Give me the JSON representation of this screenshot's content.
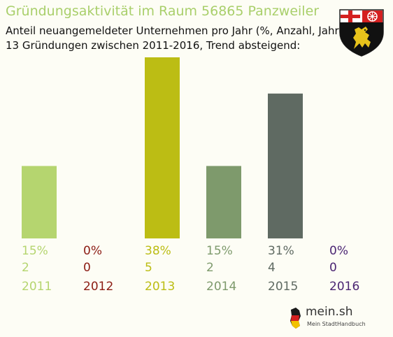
{
  "header": {
    "title": "Gründungsaktivität im Raum 56865 Panzweiler",
    "subtitle_line1": "Anteil neuangemeldeter Unternehmen pro Jahr (%, Anzahl, Jahr)",
    "subtitle_line2": "13 Gründungen zwischen 2011-2016, Trend absteigend:"
  },
  "crest": {
    "icon": "rhineland-palatinate-coat-of-arms-icon"
  },
  "logo": {
    "name": "mein.sh",
    "tagline": "Mein StadtHandbuch"
  },
  "chart_data": {
    "type": "bar",
    "categories": [
      "2011",
      "2012",
      "2013",
      "2014",
      "2015",
      "2016"
    ],
    "values": [
      2,
      0,
      5,
      2,
      4,
      0
    ],
    "percent_labels": [
      "15%",
      "0%",
      "38%",
      "15%",
      "31%",
      "0%"
    ],
    "colors": [
      "#b5d56f",
      "#8c1c13",
      "#bcbd14",
      "#7e9a6c",
      "#5f6a62",
      "#4b2573"
    ],
    "ylim": [
      0,
      5
    ],
    "grid": false,
    "legend": "none"
  }
}
